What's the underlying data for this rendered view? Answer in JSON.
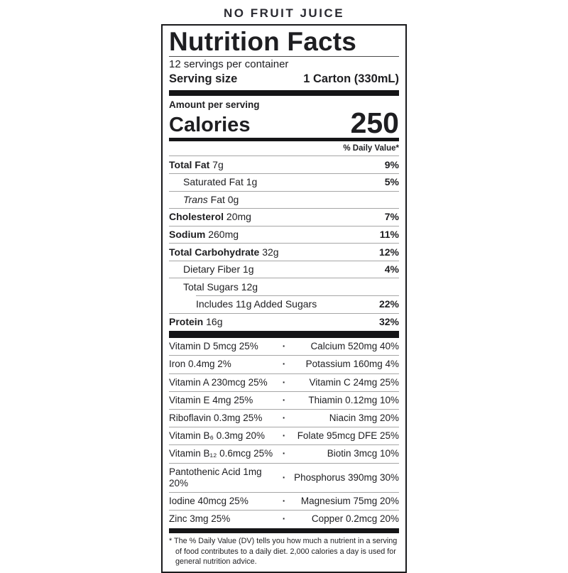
{
  "claim_banner": "NO FRUIT JUICE",
  "label": {
    "title": "Nutrition Facts",
    "servings_per_container": "12 servings per container",
    "serving_size_label": "Serving size",
    "serving_size_value": "1 Carton (330mL)",
    "amount_per_serving": "Amount per serving",
    "calories_label": "Calories",
    "calories_value": "250",
    "daily_value_header": "% Daily Value*",
    "nutrients": [
      {
        "bold": "Total Fat",
        "rest": "7g",
        "dv": "9%",
        "indent": 0,
        "rule_indent": 0
      },
      {
        "bold": "",
        "rest": "Saturated Fat 1g",
        "dv": "5%",
        "indent": 20,
        "rule_indent": 0
      },
      {
        "italic": "Trans",
        "rest": "Fat 0g",
        "dv": "",
        "indent": 20,
        "rule_indent": 0
      },
      {
        "bold": "Cholesterol",
        "rest": "20mg",
        "dv": "7%",
        "indent": 0,
        "rule_indent": 0
      },
      {
        "bold": "Sodium",
        "rest": "260mg",
        "dv": "11%",
        "indent": 0,
        "rule_indent": 0
      },
      {
        "bold": "Total Carbohydrate",
        "rest": "32g",
        "dv": "12%",
        "indent": 0,
        "rule_indent": 0
      },
      {
        "bold": "",
        "rest": "Dietary Fiber 1g",
        "dv": "4%",
        "indent": 20,
        "rule_indent": 0
      },
      {
        "bold": "",
        "rest": "Total Sugars 12g",
        "dv": "",
        "indent": 20,
        "rule_indent": 0
      },
      {
        "bold": "",
        "rest": "Includes 11g Added Sugars",
        "dv": "22%",
        "indent": 38,
        "rule_indent": 38
      },
      {
        "bold": "Protein",
        "rest": "16g",
        "dv": "32%",
        "indent": 0,
        "rule_indent": 0
      }
    ],
    "micronutrient_separator": "·",
    "micronutrients": [
      {
        "left": "Vitamin D 5mcg 25%",
        "right": "Calcium 520mg 40%"
      },
      {
        "left": "Iron 0.4mg 2%",
        "right": "Potassium 160mg 4%"
      },
      {
        "left": "Vitamin A 230mcg 25%",
        "right": "Vitamin C 24mg 25%"
      },
      {
        "left": "Vitamin E 4mg 25%",
        "right": "Thiamin 0.12mg 10%"
      },
      {
        "left": "Riboflavin 0.3mg 25%",
        "right": "Niacin 3mg 20%"
      },
      {
        "left": "Vitamin B₆ 0.3mg 20%",
        "right": "Folate 95mcg DFE 25%"
      },
      {
        "left": "Vitamin B₁₂ 0.6mcg 25%",
        "right": "Biotin 3mcg 10%"
      },
      {
        "left": "Pantothenic Acid 1mg 20%",
        "right": "Phosphorus 390mg 30%"
      },
      {
        "left": "Iodine 40mcg 25%",
        "right": "Magnesium 75mg 20%"
      },
      {
        "left": "Zinc 3mg 25%",
        "right": "Copper 0.2mcg 20%"
      }
    ],
    "footnote_marker": "*",
    "footnote": "The % Daily Value (DV) tells you how much a nutrient in a serving of food contributes to a daily diet. 2,000 calories a day is used for general nutrition advice."
  },
  "colors": {
    "text": "#1e1e21",
    "thick_bar": "#151517",
    "hairline": "#a6a6a6",
    "border": "#1a1a1c",
    "background": "#ffffff"
  }
}
